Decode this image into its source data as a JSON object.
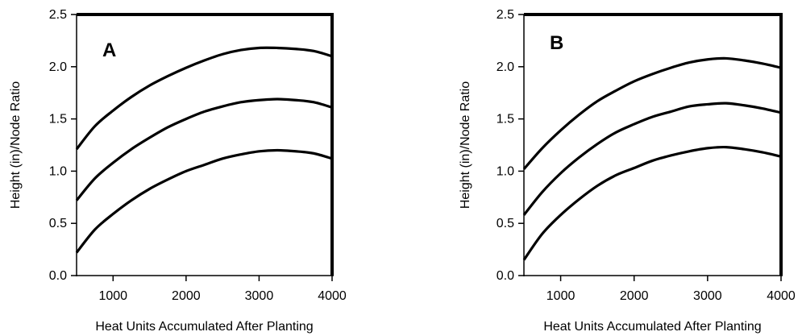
{
  "chart_data": [
    {
      "type": "line",
      "panel_label": "A",
      "xlabel": "Heat Units Accumulated After Planting",
      "ylabel": "Height (in)/Node Ratio",
      "xlim": [
        500,
        4000
      ],
      "ylim": [
        0,
        2.5
      ],
      "xticks": [
        "1000",
        "2000",
        "3000",
        "4000"
      ],
      "yticks": [
        "0.0",
        "0.5",
        "1.0",
        "1.5",
        "2.0",
        "2.5"
      ],
      "grid": false,
      "x": [
        500,
        750,
        1000,
        1250,
        1500,
        1750,
        2000,
        2250,
        2500,
        2750,
        3000,
        3250,
        3500,
        3750,
        4000
      ],
      "series": [
        {
          "values": [
            1.21,
            1.43,
            1.58,
            1.71,
            1.82,
            1.91,
            1.99,
            2.06,
            2.12,
            2.16,
            2.18,
            2.18,
            2.17,
            2.15,
            2.1
          ]
        },
        {
          "values": [
            0.72,
            0.93,
            1.08,
            1.21,
            1.32,
            1.42,
            1.5,
            1.57,
            1.62,
            1.66,
            1.68,
            1.69,
            1.68,
            1.66,
            1.61
          ]
        },
        {
          "values": [
            0.22,
            0.44,
            0.59,
            0.72,
            0.83,
            0.92,
            1.0,
            1.06,
            1.12,
            1.16,
            1.19,
            1.2,
            1.19,
            1.17,
            1.12
          ]
        }
      ]
    },
    {
      "type": "line",
      "panel_label": "B",
      "xlabel": "Heat Units Accumulated After Planting",
      "ylabel": "Height (in)/Node Ratio",
      "xlim": [
        500,
        4000
      ],
      "ylim": [
        0,
        2.5
      ],
      "xticks": [
        "1000",
        "2000",
        "3000",
        "4000"
      ],
      "yticks": [
        "0.0",
        "0.5",
        "1.0",
        "1.5",
        "2.0",
        "2.5"
      ],
      "grid": false,
      "x": [
        500,
        750,
        1000,
        1250,
        1500,
        1750,
        2000,
        2250,
        2500,
        2750,
        3000,
        3250,
        3500,
        3750,
        4000
      ],
      "series": [
        {
          "values": [
            1.02,
            1.22,
            1.39,
            1.54,
            1.67,
            1.77,
            1.86,
            1.93,
            1.99,
            2.04,
            2.07,
            2.08,
            2.06,
            2.03,
            1.99
          ]
        },
        {
          "values": [
            0.58,
            0.8,
            0.98,
            1.13,
            1.26,
            1.37,
            1.45,
            1.52,
            1.57,
            1.62,
            1.64,
            1.65,
            1.63,
            1.6,
            1.56
          ]
        },
        {
          "values": [
            0.15,
            0.4,
            0.58,
            0.73,
            0.86,
            0.96,
            1.03,
            1.1,
            1.15,
            1.19,
            1.22,
            1.23,
            1.21,
            1.18,
            1.14
          ]
        }
      ]
    }
  ]
}
